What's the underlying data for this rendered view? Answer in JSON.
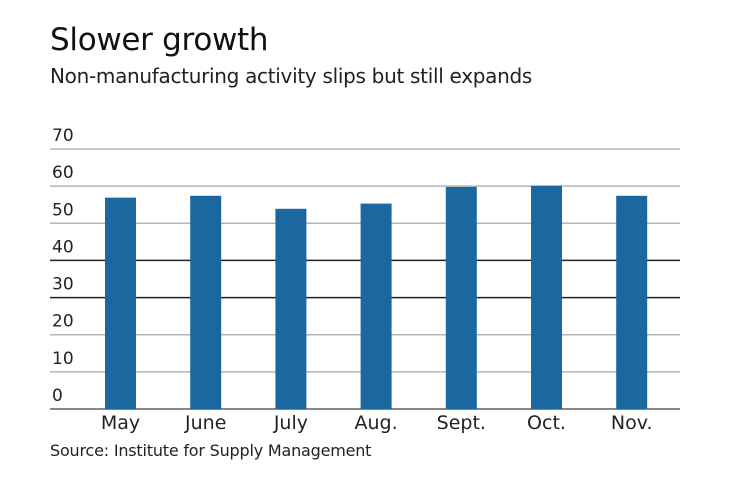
{
  "chart_data": {
    "type": "bar",
    "title": "Slower growth",
    "subtitle": "Non-manufacturing activity slips but still expands",
    "source": "Source: Institute for Supply Management",
    "xlabel": "",
    "ylabel": "",
    "categories": [
      "May",
      "June",
      "July",
      "Aug.",
      "Sept.",
      "Oct.",
      "Nov."
    ],
    "values": [
      56.9,
      57.4,
      53.9,
      55.3,
      59.8,
      60.1,
      57.4
    ],
    "ylim": [
      0,
      70
    ],
    "yticks": [
      0,
      10,
      20,
      30,
      40,
      50,
      60,
      70
    ],
    "grid": true,
    "legend": "none",
    "bar_color": "#1b67a0",
    "grid_color": "#b5b5b5",
    "grid_color_dark": "#222222"
  }
}
